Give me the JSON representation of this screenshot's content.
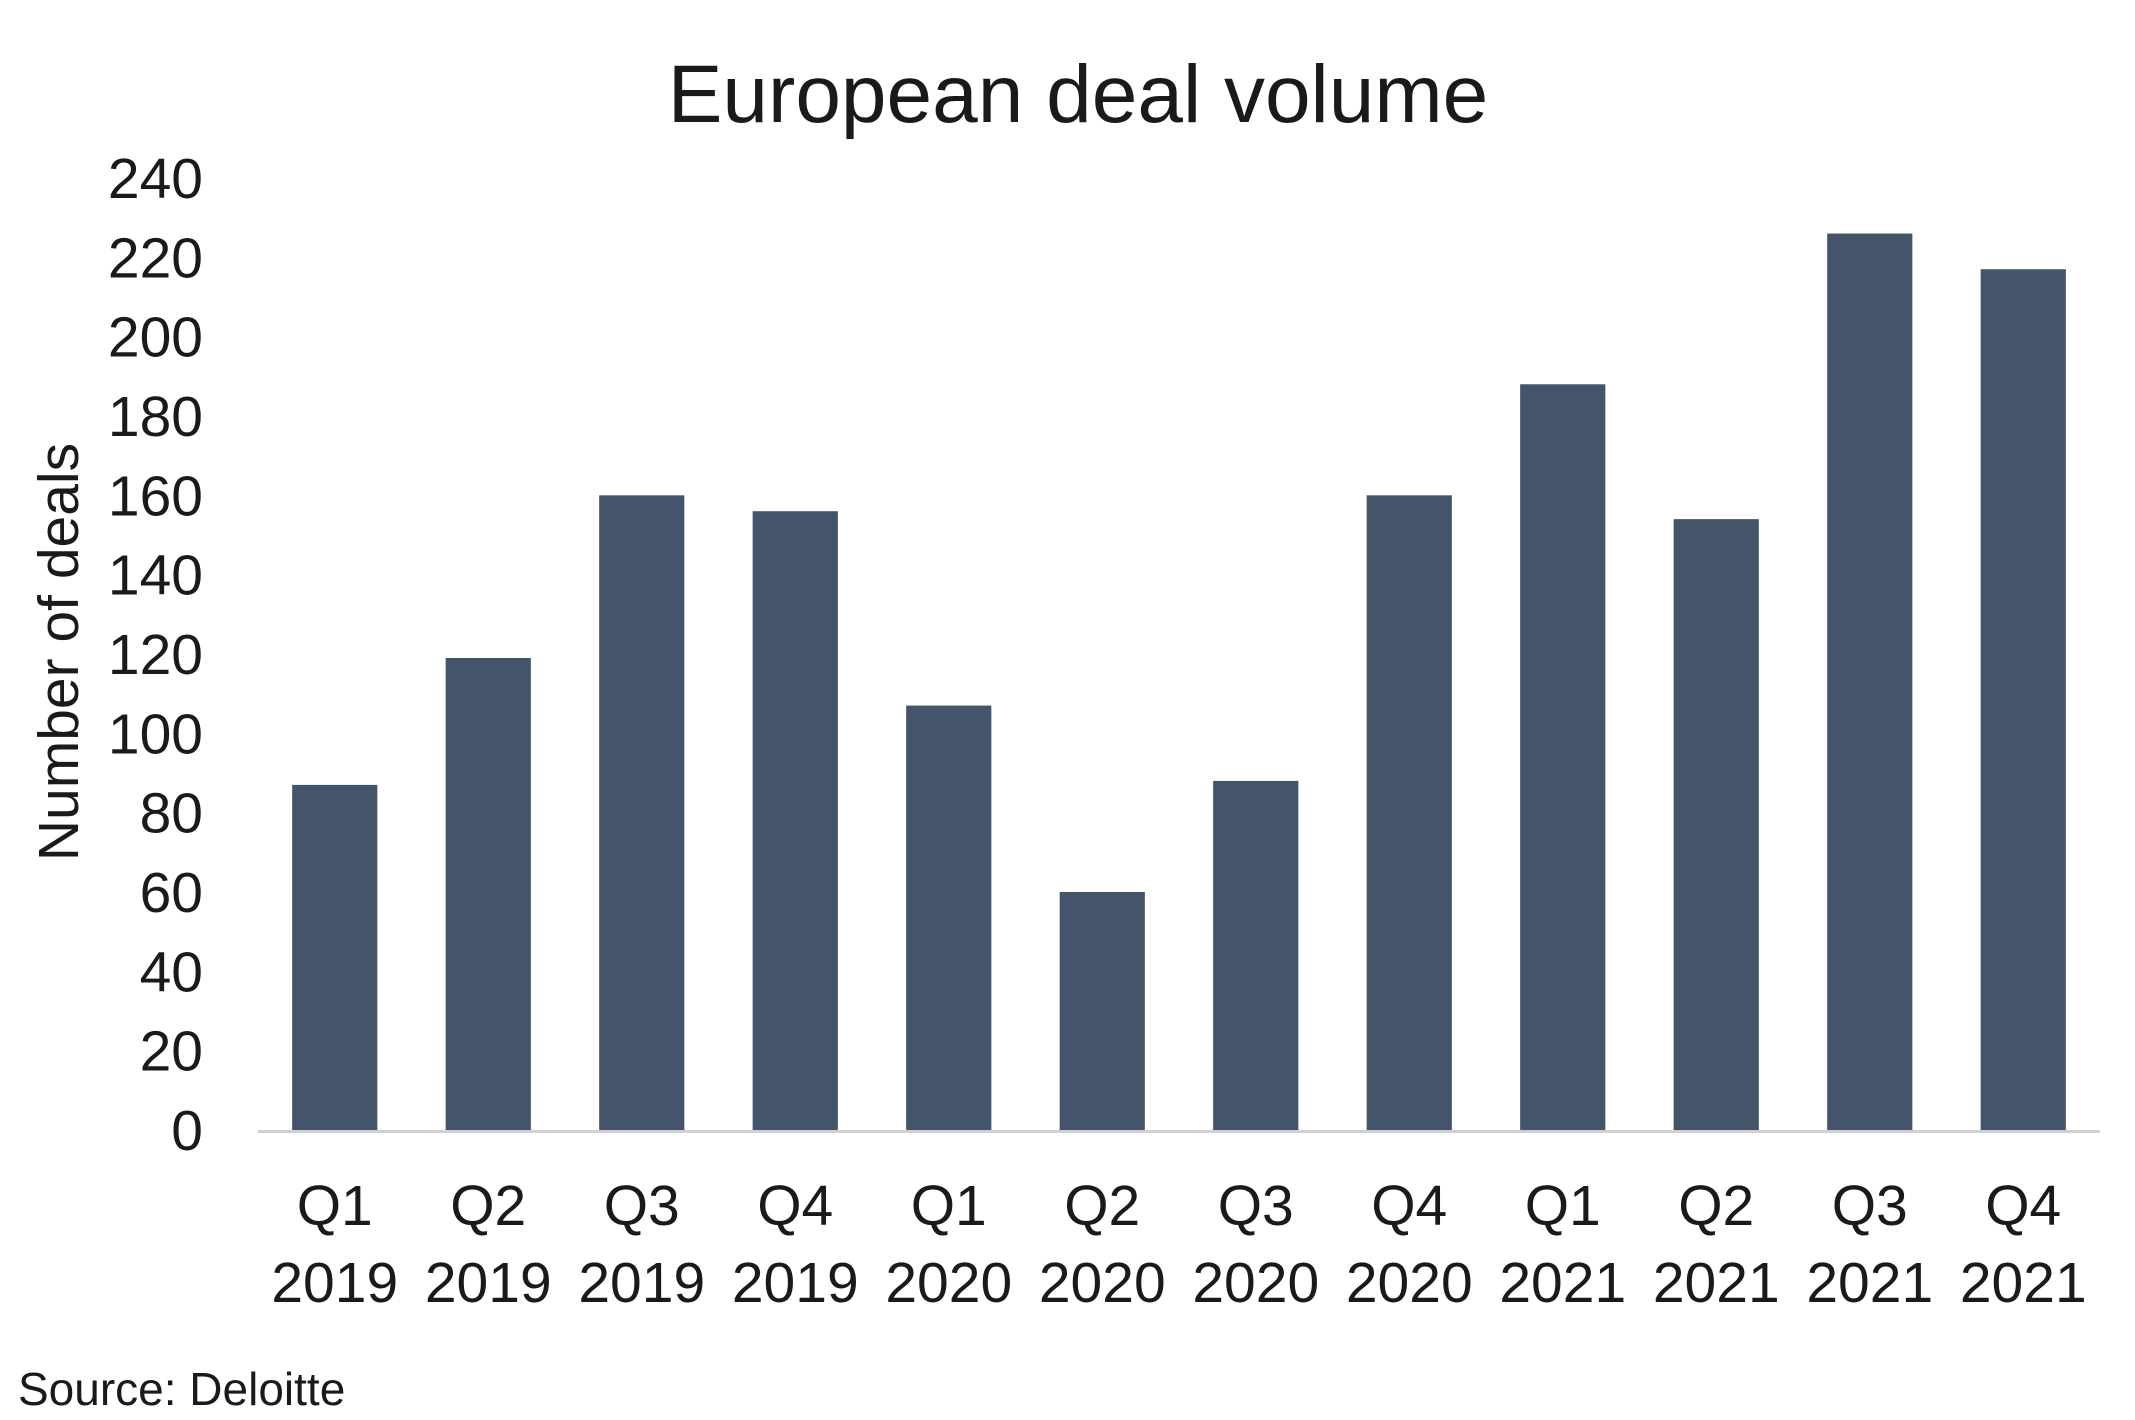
{
  "chart_data": {
    "type": "bar",
    "title": "European deal volume",
    "xlabel": "",
    "ylabel": "Number of deals",
    "categories": [
      [
        "Q1",
        "2019"
      ],
      [
        "Q2",
        "2019"
      ],
      [
        "Q3",
        "2019"
      ],
      [
        "Q4",
        "2019"
      ],
      [
        "Q1",
        "2020"
      ],
      [
        "Q2",
        "2020"
      ],
      [
        "Q3",
        "2020"
      ],
      [
        "Q4",
        "2020"
      ],
      [
        "Q1",
        "2021"
      ],
      [
        "Q2",
        "2021"
      ],
      [
        "Q3",
        "2021"
      ],
      [
        "Q4",
        "2021"
      ]
    ],
    "values": [
      87,
      119,
      160,
      156,
      107,
      60,
      88,
      160,
      188,
      154,
      226,
      217
    ],
    "ylim": [
      0,
      240
    ],
    "yticks": [
      0,
      20,
      40,
      60,
      80,
      100,
      120,
      140,
      160,
      180,
      200,
      220,
      240
    ],
    "grid": false,
    "legend": "none",
    "colors": {
      "bar": "#44546a",
      "axis": "#d0d0d0",
      "text": "#1a1a1a"
    }
  },
  "source": "Source: Deloitte"
}
